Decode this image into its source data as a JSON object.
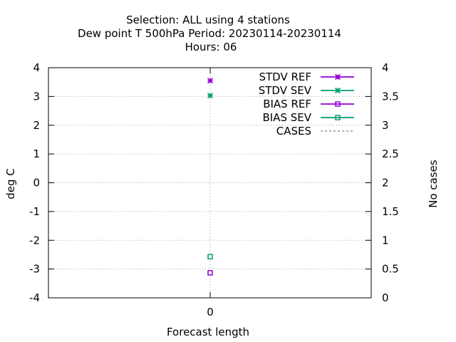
{
  "chart_data": {
    "type": "scatter",
    "title": [
      "Selection: ALL using     4 stations",
      "Dew point T 500hPa   Period: 20230114-20230114",
      "Hours:  06"
    ],
    "xlabel": "Forecast length",
    "ylabel": "deg C",
    "y2label": "No cases",
    "x": [
      0
    ],
    "xticks": [
      "0"
    ],
    "ylim": [
      -4,
      4
    ],
    "yticks": [
      -4,
      -3,
      -2,
      -1,
      0,
      1,
      2,
      3,
      4
    ],
    "y2lim": [
      0,
      4
    ],
    "y2ticks": [
      "0",
      "0.5",
      "1",
      "1.5",
      "2",
      "2.5",
      "3",
      "3.5",
      "4"
    ],
    "grid": true,
    "legend_position": "top-right",
    "series": [
      {
        "name": "STDV REF",
        "values": [
          3.55
        ],
        "color": "#9400d3",
        "marker": "star",
        "axis": "y"
      },
      {
        "name": "STDV SEV",
        "values": [
          3.03
        ],
        "color": "#009e73",
        "marker": "star",
        "axis": "y"
      },
      {
        "name": "BIAS REF",
        "values": [
          -3.13
        ],
        "color": "#9400d3",
        "marker": "square",
        "axis": "y"
      },
      {
        "name": "BIAS SEV",
        "values": [
          -2.57
        ],
        "color": "#009e73",
        "marker": "square",
        "axis": "y"
      },
      {
        "name": "CASES",
        "values": [],
        "color": "#808080",
        "marker": "dashed-line",
        "axis": "y2"
      }
    ]
  }
}
